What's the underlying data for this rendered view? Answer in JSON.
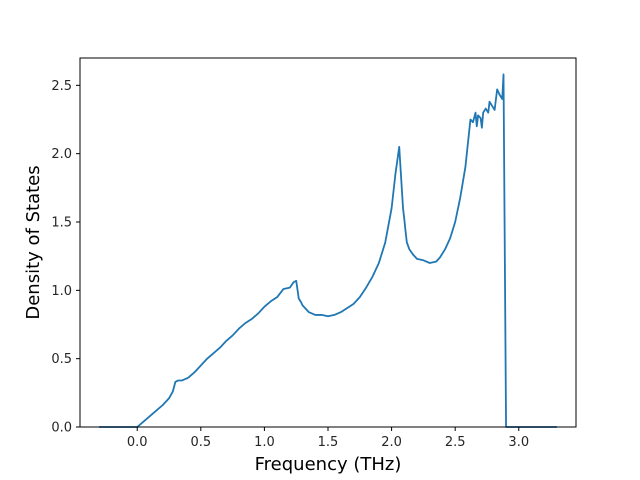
{
  "chart_data": {
    "type": "line",
    "title": "",
    "xlabel": "Frequency (THz)",
    "ylabel": "Density of States",
    "xlim": [
      -0.45,
      3.45
    ],
    "ylim": [
      0.0,
      2.7
    ],
    "xticks": [
      {
        "value": 0.0,
        "label": "0.0"
      },
      {
        "value": 0.5,
        "label": "0.5"
      },
      {
        "value": 1.0,
        "label": "1.0"
      },
      {
        "value": 1.5,
        "label": "1.5"
      },
      {
        "value": 2.0,
        "label": "2.0"
      },
      {
        "value": 2.5,
        "label": "2.5"
      },
      {
        "value": 3.0,
        "label": "3.0"
      }
    ],
    "yticks": [
      {
        "value": 0.0,
        "label": "0.0"
      },
      {
        "value": 0.5,
        "label": "0.5"
      },
      {
        "value": 1.0,
        "label": "1.0"
      },
      {
        "value": 1.5,
        "label": "1.5"
      },
      {
        "value": 2.0,
        "label": "2.0"
      },
      {
        "value": 2.5,
        "label": "2.5"
      }
    ],
    "grid": false,
    "legend": "none",
    "series": [
      {
        "color": "#1f77b4",
        "x": [
          -0.3,
          -0.1,
          0.0,
          0.05,
          0.1,
          0.15,
          0.2,
          0.25,
          0.28,
          0.3,
          0.32,
          0.35,
          0.4,
          0.45,
          0.5,
          0.55,
          0.6,
          0.65,
          0.7,
          0.75,
          0.8,
          0.85,
          0.9,
          0.95,
          1.0,
          1.05,
          1.1,
          1.15,
          1.2,
          1.23,
          1.25,
          1.27,
          1.29,
          1.3,
          1.35,
          1.4,
          1.45,
          1.5,
          1.55,
          1.6,
          1.65,
          1.7,
          1.75,
          1.8,
          1.85,
          1.9,
          1.95,
          2.0,
          2.03,
          2.06,
          2.08,
          2.09,
          2.1,
          2.11,
          2.12,
          2.14,
          2.17,
          2.2,
          2.25,
          2.3,
          2.35,
          2.38,
          2.42,
          2.46,
          2.5,
          2.54,
          2.58,
          2.62,
          2.64,
          2.66,
          2.67,
          2.68,
          2.7,
          2.71,
          2.72,
          2.74,
          2.76,
          2.77,
          2.79,
          2.81,
          2.83,
          2.85,
          2.87,
          2.88,
          2.9,
          2.91,
          2.92,
          2.93,
          2.94,
          2.95,
          2.96,
          2.975,
          2.99,
          3.0,
          3.1,
          3.2,
          3.3
        ],
        "y": [
          0.0,
          0.0,
          0.0,
          0.04,
          0.08,
          0.12,
          0.16,
          0.21,
          0.26,
          0.33,
          0.34,
          0.34,
          0.36,
          0.4,
          0.45,
          0.5,
          0.54,
          0.58,
          0.63,
          0.67,
          0.72,
          0.76,
          0.79,
          0.83,
          0.88,
          0.92,
          0.95,
          1.01,
          1.02,
          1.06,
          1.07,
          0.94,
          0.91,
          0.89,
          0.84,
          0.82,
          0.82,
          0.81,
          0.82,
          0.84,
          0.87,
          0.9,
          0.95,
          1.02,
          1.1,
          1.2,
          1.35,
          1.6,
          1.85,
          2.05,
          1.75,
          1.6,
          1.52,
          1.43,
          1.35,
          1.3,
          1.26,
          1.23,
          1.22,
          1.2,
          1.21,
          1.24,
          1.3,
          1.38,
          1.5,
          1.68,
          1.9,
          2.25,
          2.23,
          2.3,
          2.2,
          2.28,
          2.26,
          2.19,
          2.3,
          2.33,
          2.3,
          2.38,
          2.35,
          2.32,
          2.47,
          2.43,
          2.4,
          2.58,
          0.0,
          0.0,
          0.0,
          0.0,
          0.0,
          0.0,
          0.0,
          0.0,
          0.0,
          0.0,
          0.0,
          0.0,
          0.0
        ]
      }
    ]
  }
}
